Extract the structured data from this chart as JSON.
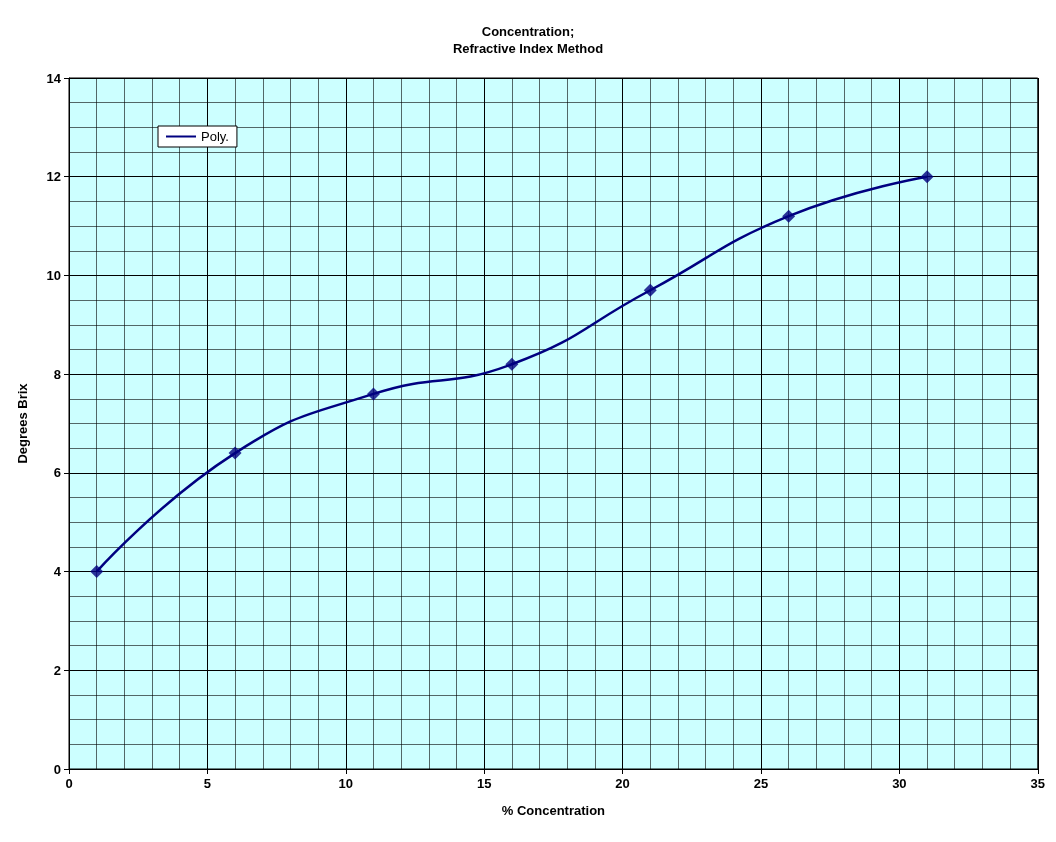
{
  "chart_data": {
    "type": "scatter",
    "title": "Concentration;\nRefractive Index Method",
    "xlabel": "% Concentration",
    "ylabel": "Degrees Brix",
    "x": [
      1,
      6,
      11,
      16,
      21,
      26,
      31
    ],
    "series": [
      {
        "color": "#000080",
        "values": [
          4,
          6.4,
          7.6,
          8.2,
          9.7,
          11.2,
          12
        ],
        "marker": "diamond"
      },
      {
        "type": "line",
        "name": "Poly.",
        "color": "#000080",
        "x": [
          1,
          6,
          11,
          16,
          21,
          26,
          31
        ],
        "values": [
          4,
          6.4,
          7.6,
          8.2,
          9.7,
          11.2,
          12
        ],
        "marker": "none"
      }
    ],
    "xlim": [
      0,
      35
    ],
    "xticks": [
      0,
      5,
      10,
      15,
      20,
      25,
      30,
      35
    ],
    "ylim": [
      0,
      14
    ],
    "yticks": [
      0,
      2,
      4,
      6,
      8,
      10,
      12,
      14
    ],
    "grid": true,
    "legend": "top left"
  }
}
